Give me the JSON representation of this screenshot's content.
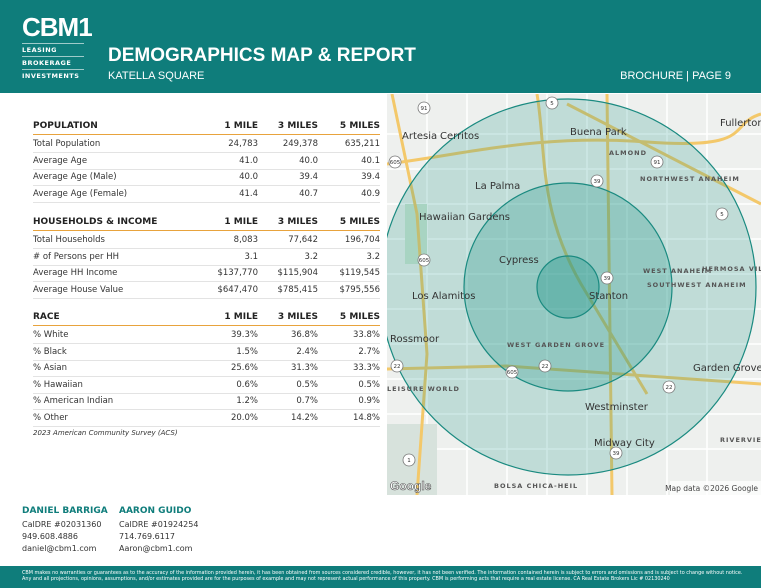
{
  "header": {
    "logo": "CBM1",
    "logo_lines": [
      "LEASING",
      "BROKERAGE",
      "INVESTMENTS"
    ],
    "title": "DEMOGRAPHICS MAP & REPORT",
    "subtitle": "KATELLA SQUARE",
    "page": "BROCHURE | PAGE 9"
  },
  "tables": [
    {
      "columns": [
        "POPULATION",
        "1 MILE",
        "3 MILES",
        "5 MILES"
      ],
      "rows": [
        [
          "Total Population",
          "24,783",
          "249,378",
          "635,211"
        ],
        [
          "Average Age",
          "41.0",
          "40.0",
          "40.1"
        ],
        [
          "Average Age (Male)",
          "40.0",
          "39.4",
          "39.4"
        ],
        [
          "Average Age (Female)",
          "41.4",
          "40.7",
          "40.9"
        ]
      ]
    },
    {
      "columns": [
        "HOUSEHOLDS & INCOME",
        "1 MILE",
        "3 MILES",
        "5 MILES"
      ],
      "rows": [
        [
          "Total Households",
          "8,083",
          "77,642",
          "196,704"
        ],
        [
          "# of Persons per HH",
          "3.1",
          "3.2",
          "3.2"
        ],
        [
          "Average HH Income",
          "$137,770",
          "$115,904",
          "$119,545"
        ],
        [
          "Average House Value",
          "$647,470",
          "$785,415",
          "$795,556"
        ]
      ]
    },
    {
      "columns": [
        "RACE",
        "1 MILE",
        "3 MILES",
        "5 MILES"
      ],
      "rows": [
        [
          "% White",
          "39.3%",
          "36.8%",
          "33.8%"
        ],
        [
          "% Black",
          "1.5%",
          "2.4%",
          "2.7%"
        ],
        [
          "% Asian",
          "25.6%",
          "31.3%",
          "33.3%"
        ],
        [
          "% Hawaiian",
          "0.6%",
          "0.5%",
          "0.5%"
        ],
        [
          "% American Indian",
          "1.2%",
          "0.7%",
          "0.9%"
        ],
        [
          "% Other",
          "20.0%",
          "14.2%",
          "14.8%"
        ]
      ]
    }
  ],
  "source_note": "2023 American Community Survey (ACS)",
  "map": {
    "labels": [
      "Fullerton",
      "Artesia",
      "Cerritos",
      "Buena Park",
      "ALMOND",
      "La Palma",
      "NORTHWEST ANAHEIM",
      "Hawaiian Gardens",
      "Cypress",
      "WEST ANAHEIM",
      "HERMOSA VILLAGE",
      "SOUTHWEST ANAHEIM",
      "Los Alamitos",
      "Stanton",
      "Rossmoor",
      "WEST GARDEN GROVE",
      "Garden Grove",
      "LEISURE WORLD",
      "Westminster",
      "Midway City",
      "RIVERVIEW WEST",
      "BOLSA CHICA-HEIL"
    ],
    "shields": [
      "91",
      "5",
      "605",
      "91",
      "39",
      "5",
      "605",
      "39",
      "22",
      "22",
      "605",
      "22",
      "39",
      "1"
    ],
    "logo": "Google",
    "attribution": "Map data ©2026 Google"
  },
  "contacts": [
    {
      "name": "DANIEL BARRIGA",
      "license": "CalDRE #02031360",
      "phone": "949.608.4886",
      "email": "daniel@cbm1.com"
    },
    {
      "name": "AARON GUIDO",
      "license": "CalDRE #01924254",
      "phone": "714.769.6117",
      "email": "Aaron@cbm1.com"
    }
  ],
  "disclaimer": "CBM makes no warranties or guarantees as to the accuracy of the information provided herein, it has been obtained from sources considered credible, however, it has not been verified. The information contained herein is subject to errors and omissions and is subject to change without notice. Any and all projections, opinions, assumptions, and/or estimates provided are for the purposes of example and may not represent actual performance of this property. CBM is performing acts that require a real estate license. CA Real Estate Brokers Lic # 02130240"
}
